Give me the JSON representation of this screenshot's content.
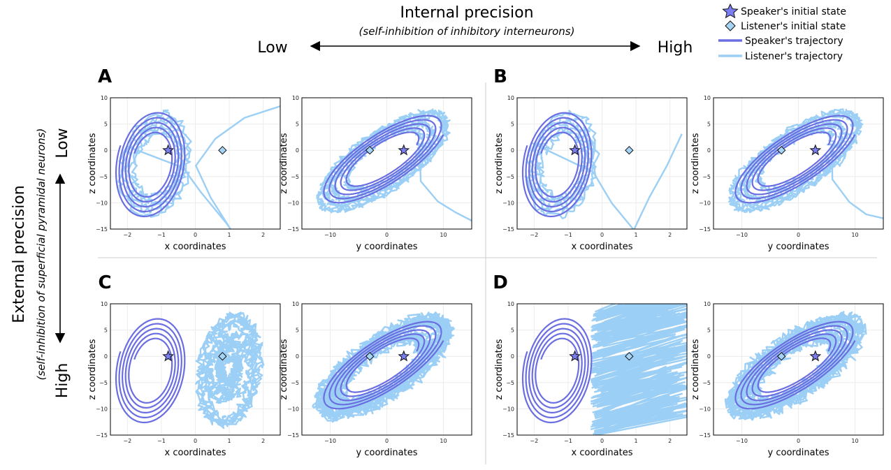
{
  "header": {
    "internal_title": "Internal precision",
    "internal_subtitle": "(self-inhibition of inhibitory interneurons)",
    "low": "Low",
    "high": "High"
  },
  "side": {
    "external_title": "External precision",
    "external_subtitle": "(self-inhibition of superficial pyramidal neurons)",
    "low": "Low",
    "high": "High"
  },
  "legend": {
    "speaker_initial": "Speaker's initial state",
    "listener_initial": "Listener's initial state",
    "speaker_traj": "Speaker's trajectory",
    "listener_traj": "Listener's trajectory"
  },
  "colors": {
    "speaker": "#6a6ee0",
    "listener": "#9ccff5",
    "marker_speaker_fill": "#7a7ef0",
    "marker_listener_fill": "#a6d4f5",
    "grid": "#ececec"
  },
  "chart_data": [
    {
      "panel": "A",
      "type": "line",
      "plots": [
        {
          "xlabel": "x coordinates",
          "ylabel": "z coordinates",
          "xlim": [
            -2.5,
            2.5
          ],
          "ylim": [
            -15,
            10
          ],
          "xticks": [
            -2,
            -1,
            0,
            1,
            2
          ],
          "yticks": [
            10,
            5,
            0,
            -5,
            -10,
            -15
          ],
          "speaker_initial": [
            -0.8,
            0
          ],
          "listener_initial": [
            0.8,
            0
          ],
          "listener_style": "wide_A"
        },
        {
          "xlabel": "y coordinates",
          "ylabel": "z coordinates",
          "xlim": [
            -15,
            15
          ],
          "ylim": [
            -15,
            10
          ],
          "xticks": [
            -10,
            0,
            10
          ],
          "yticks": [
            10,
            5,
            0,
            -5,
            -10,
            -15
          ],
          "speaker_initial": [
            3,
            0
          ],
          "listener_initial": [
            -3,
            0
          ],
          "listener_style": "wide_A"
        }
      ]
    },
    {
      "panel": "B",
      "type": "line",
      "plots": [
        {
          "xlabel": "x coordinates",
          "ylabel": "z coordinates",
          "xlim": [
            -2.5,
            2.5
          ],
          "ylim": [
            -15,
            10
          ],
          "xticks": [
            -2,
            -1,
            0,
            1,
            2
          ],
          "yticks": [
            10,
            5,
            0,
            -5,
            -10,
            -15
          ],
          "speaker_initial": [
            -0.8,
            0
          ],
          "listener_initial": [
            0.8,
            0
          ],
          "listener_style": "wide_B"
        },
        {
          "xlabel": "y coordinates",
          "ylabel": "z coordinates",
          "xlim": [
            -15,
            15
          ],
          "ylim": [
            -15,
            10
          ],
          "xticks": [
            -10,
            0,
            10
          ],
          "yticks": [
            10,
            5,
            0,
            -5,
            -10,
            -15
          ],
          "speaker_initial": [
            3,
            0
          ],
          "listener_initial": [
            -3,
            0
          ],
          "listener_style": "wide_B"
        }
      ]
    },
    {
      "panel": "C",
      "type": "line",
      "plots": [
        {
          "xlabel": "x coordinates",
          "ylabel": "z coordinates",
          "xlim": [
            -2.5,
            2.5
          ],
          "ylim": [
            -15,
            10
          ],
          "xticks": [
            -2,
            -1,
            0,
            1,
            2
          ],
          "yticks": [
            10,
            5,
            0,
            -5,
            -10,
            -15
          ],
          "speaker_initial": [
            -0.8,
            0
          ],
          "listener_initial": [
            0.8,
            0
          ],
          "listener_style": "blob_C"
        },
        {
          "xlabel": "y coordinates",
          "ylabel": "z coordinates",
          "xlim": [
            -15,
            15
          ],
          "ylim": [
            -15,
            10
          ],
          "xticks": [
            -10,
            0,
            10
          ],
          "yticks": [
            10,
            5,
            0,
            -5,
            -10,
            -15
          ],
          "speaker_initial": [
            3,
            0
          ],
          "listener_initial": [
            -3,
            0
          ],
          "listener_style": "noisy_yz"
        }
      ]
    },
    {
      "panel": "D",
      "type": "line",
      "plots": [
        {
          "xlabel": "x coordinates",
          "ylabel": "z coordinates",
          "xlim": [
            -2.5,
            2.5
          ],
          "ylim": [
            -15,
            10
          ],
          "xticks": [
            -2,
            -1,
            0,
            1,
            2
          ],
          "yticks": [
            10,
            5,
            0,
            -5,
            -10,
            -15
          ],
          "speaker_initial": [
            -0.8,
            0
          ],
          "listener_initial": [
            0.8,
            0
          ],
          "listener_style": "hatch_D"
        },
        {
          "xlabel": "y coordinates",
          "ylabel": "z coordinates",
          "xlim": [
            -15,
            15
          ],
          "ylim": [
            -15,
            10
          ],
          "xticks": [
            -10,
            0,
            10
          ],
          "yticks": [
            10,
            5,
            0,
            -5,
            -10,
            -15
          ],
          "speaker_initial": [
            3,
            0
          ],
          "listener_initial": [
            -3,
            0
          ],
          "listener_style": "noisy_yz"
        }
      ]
    }
  ]
}
